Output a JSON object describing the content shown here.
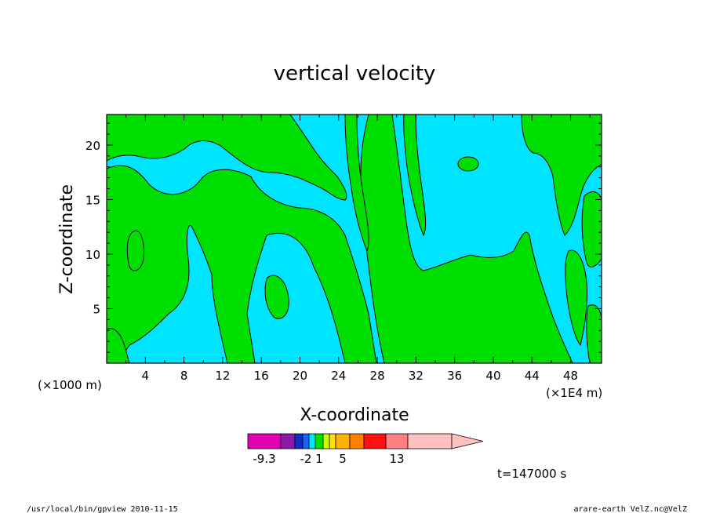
{
  "chart_data": {
    "type": "heatmap",
    "title": "vertical velocity",
    "xlabel": "X-coordinate",
    "ylabel": "Z-coordinate",
    "x_unit_left": "(×1000 m)",
    "x_unit_right": "(×1E4 m)",
    "x_ticks": [
      4,
      8,
      12,
      16,
      20,
      24,
      28,
      32,
      36,
      40,
      44,
      48
    ],
    "y_ticks": [
      5,
      10,
      15,
      20
    ],
    "xlim": [
      0,
      51.2
    ],
    "ylim": [
      0,
      22.8
    ],
    "time_label": "t=147000 s",
    "colorbar": {
      "labels": [
        {
          "text": "-9.3",
          "index": 0
        },
        {
          "text": "-2",
          "index": 3
        },
        {
          "text": "1",
          "index": 5
        },
        {
          "text": "5",
          "index": 8
        },
        {
          "text": "13",
          "index": 11
        }
      ],
      "colors": [
        "#e000b0",
        "#8a1aa8",
        "#1030c8",
        "#1f60ff",
        "#00e5ff",
        "#00e000",
        "#c8ff00",
        "#ffe000",
        "#ffb000",
        "#ff8000",
        "#ff1010",
        "#ff8080",
        "#ffc0c0"
      ],
      "dominant_colors": {
        "negative": "#00e5ff",
        "positive": "#00e000"
      }
    }
  },
  "footer": {
    "left": "/usr/local/bin/gpview  2010-11-15",
    "right": "arare-earth_VelZ.nc@VelZ"
  }
}
